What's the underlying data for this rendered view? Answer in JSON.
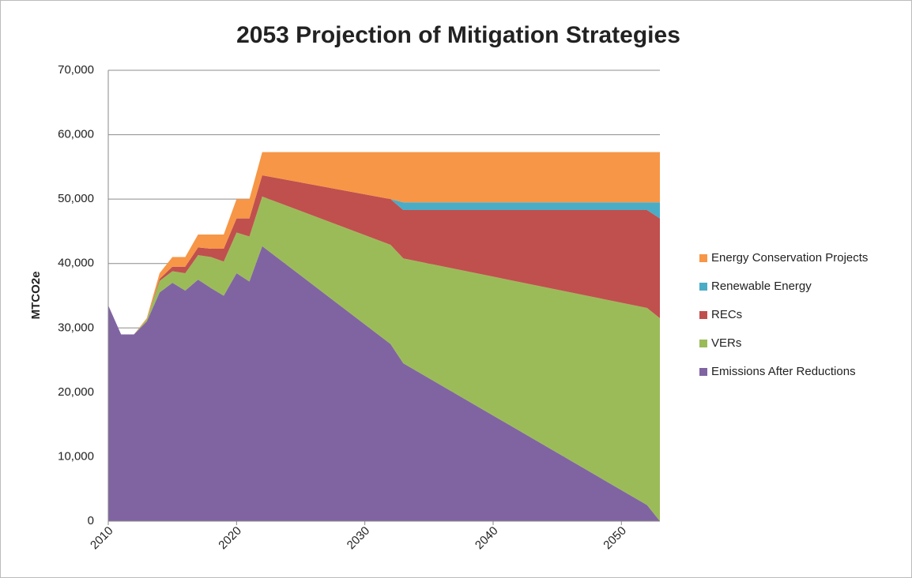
{
  "chart_data": {
    "type": "stacked-area",
    "title": "2053 Projection of Mitigation Strategies",
    "y_label": "MTCO2e",
    "x": [
      2010,
      2011,
      2012,
      2013,
      2014,
      2015,
      2016,
      2017,
      2018,
      2019,
      2020,
      2021,
      2022,
      2032,
      2033,
      2052,
      2053
    ],
    "series": [
      {
        "name": "Emissions After Reductions",
        "color": "#8064a2",
        "values": [
          33500,
          29000,
          29000,
          31000,
          35500,
          37000,
          35800,
          37500,
          36200,
          35000,
          38500,
          37200,
          42700,
          27500,
          24500,
          2500,
          0
        ]
      },
      {
        "name": "VERs",
        "color": "#9bbb59",
        "values": [
          0,
          0,
          0,
          300,
          1800,
          1800,
          2700,
          3800,
          4800,
          5300,
          6300,
          7000,
          7700,
          15400,
          16300,
          30600,
          31500
        ]
      },
      {
        "name": "RECs",
        "color": "#c0504d",
        "values": [
          0,
          0,
          0,
          0,
          300,
          700,
          1000,
          1200,
          1300,
          2000,
          2200,
          2800,
          3300,
          7100,
          7500,
          15200,
          15500
        ]
      },
      {
        "name": "Renewable Energy",
        "color": "#4bacc6",
        "values": [
          0,
          0,
          0,
          0,
          0,
          0,
          0,
          0,
          0,
          0,
          0,
          0,
          0,
          0,
          1200,
          1200,
          2500
        ]
      },
      {
        "name": "Energy Conservation Projects",
        "color": "#f79646",
        "values": [
          0,
          0,
          0,
          200,
          900,
          1500,
          1500,
          2000,
          2200,
          2200,
          3000,
          3000,
          3600,
          7300,
          7800,
          7800,
          7800
        ]
      }
    ],
    "xlim": [
      2010,
      2053
    ],
    "xticks": [
      2010,
      2020,
      2030,
      2040,
      2050
    ],
    "ylim": [
      0,
      70000
    ],
    "yticks": [
      0,
      {
        "value": 10000,
        "label": "10,000"
      },
      {
        "value": 20000,
        "label": "20,000"
      },
      {
        "value": 30000,
        "label": "30,000"
      },
      {
        "value": 40000,
        "label": "40,000"
      },
      {
        "value": 50000,
        "label": "50,000"
      },
      {
        "value": 60000,
        "label": "60,000"
      },
      {
        "value": 70000,
        "label": "70,000"
      }
    ],
    "grid": true,
    "legend": "right"
  }
}
